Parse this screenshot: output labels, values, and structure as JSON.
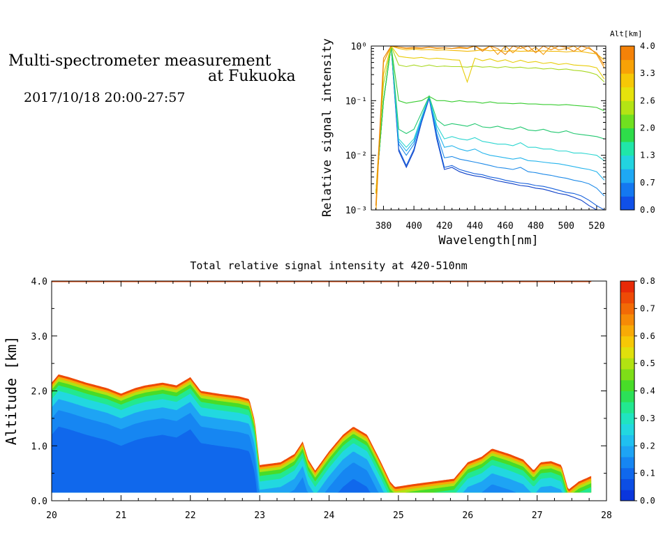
{
  "header": {
    "title_line1": "Multi-spectrometer measurement",
    "title_line2": "at Fukuoka",
    "datetime": "2017/10/18 20:00-27:57"
  },
  "chart_data": [
    {
      "type": "line",
      "xlabel": "Wavelength[nm]",
      "ylabel": "Relative signal intensity",
      "x": [
        375,
        380,
        385,
        390,
        395,
        400,
        405,
        410,
        415,
        420,
        425,
        430,
        435,
        440,
        445,
        450,
        455,
        460,
        465,
        470,
        475,
        480,
        485,
        490,
        495,
        500,
        505,
        510,
        515,
        520,
        525
      ],
      "xlim": [
        372,
        526
      ],
      "xticks": [
        "380",
        "400",
        "420",
        "440",
        "460",
        "480",
        "500",
        "520"
      ],
      "ylim": [
        0.001,
        1
      ],
      "yscale": "log",
      "yticks": [
        "10⁻³",
        "10⁻²",
        "10⁻¹",
        "10⁰"
      ],
      "colorbar": {
        "label": "Alt[km]",
        "ticks": [
          "0.0",
          "0.7",
          "1.3",
          "2.0",
          "2.6",
          "3.3",
          "4.0"
        ],
        "colors": [
          "#1050e8",
          "#1478f0",
          "#1ea8f4",
          "#22d4e0",
          "#20e6a8",
          "#2edc4a",
          "#70e020",
          "#b4e414",
          "#e6e20c",
          "#f6c806",
          "#f8a206",
          "#f48208"
        ]
      },
      "series": [
        {
          "color": "#0a3ec8",
          "values": [
            0.002,
            0.1,
            1,
            0.012,
            0.006,
            0.012,
            0.04,
            0.11,
            0.02,
            0.0055,
            0.006,
            0.005,
            0.0045,
            0.0042,
            0.004,
            0.0037,
            0.0034,
            0.0032,
            0.003,
            0.0028,
            0.0027,
            0.0025,
            0.0024,
            0.0022,
            0.002,
            0.0019,
            0.0017,
            0.0015,
            0.0012,
            0.001,
            0.0009
          ]
        },
        {
          "color": "#1660dc",
          "values": [
            0.002,
            0.1,
            1,
            0.013,
            0.0065,
            0.013,
            0.042,
            0.115,
            0.022,
            0.006,
            0.0065,
            0.0055,
            0.005,
            0.0046,
            0.0044,
            0.004,
            0.0038,
            0.0035,
            0.0033,
            0.0031,
            0.003,
            0.0028,
            0.0027,
            0.0025,
            0.0023,
            0.0021,
            0.002,
            0.0018,
            0.0015,
            0.0012,
            0.001
          ]
        },
        {
          "color": "#1e8ae8",
          "values": [
            0.002,
            0.1,
            1,
            0.016,
            0.01,
            0.016,
            0.045,
            0.12,
            0.025,
            0.009,
            0.0095,
            0.0085,
            0.008,
            0.0075,
            0.007,
            0.0065,
            0.006,
            0.0058,
            0.0055,
            0.006,
            0.005,
            0.0048,
            0.0045,
            0.0043,
            0.004,
            0.0038,
            0.0035,
            0.0033,
            0.003,
            0.0025,
            0.0018
          ]
        },
        {
          "color": "#24b4ec",
          "values": [
            0.002,
            0.1,
            1,
            0.018,
            0.012,
            0.018,
            0.05,
            0.12,
            0.03,
            0.014,
            0.015,
            0.013,
            0.012,
            0.013,
            0.011,
            0.01,
            0.0095,
            0.009,
            0.0085,
            0.009,
            0.008,
            0.0078,
            0.0075,
            0.0072,
            0.007,
            0.0066,
            0.0062,
            0.0058,
            0.0055,
            0.005,
            0.0035
          ]
        },
        {
          "color": "#2cd6d0",
          "values": [
            0.002,
            0.1,
            1,
            0.02,
            0.014,
            0.02,
            0.05,
            0.12,
            0.035,
            0.02,
            0.022,
            0.02,
            0.019,
            0.021,
            0.018,
            0.017,
            0.016,
            0.016,
            0.015,
            0.017,
            0.014,
            0.014,
            0.013,
            0.013,
            0.012,
            0.012,
            0.011,
            0.011,
            0.0105,
            0.01,
            0.008
          ]
        },
        {
          "color": "#22c870",
          "values": [
            0.002,
            0.1,
            1,
            0.03,
            0.025,
            0.03,
            0.06,
            0.12,
            0.045,
            0.035,
            0.038,
            0.036,
            0.034,
            0.038,
            0.033,
            0.032,
            0.034,
            0.031,
            0.03,
            0.033,
            0.029,
            0.028,
            0.03,
            0.027,
            0.026,
            0.028,
            0.025,
            0.024,
            0.023,
            0.022,
            0.02
          ]
        },
        {
          "color": "#38cc30",
          "values": [
            0.002,
            0.1,
            1,
            0.1,
            0.09,
            0.095,
            0.1,
            0.12,
            0.1,
            0.1,
            0.095,
            0.1,
            0.095,
            0.095,
            0.09,
            0.095,
            0.09,
            0.09,
            0.088,
            0.09,
            0.087,
            0.087,
            0.085,
            0.085,
            0.083,
            0.085,
            0.082,
            0.08,
            0.078,
            0.075,
            0.065
          ]
        },
        {
          "color": "#a8d820",
          "values": [
            0.002,
            0.2,
            1,
            0.45,
            0.42,
            0.45,
            0.42,
            0.45,
            0.42,
            0.43,
            0.42,
            0.42,
            0.41,
            0.43,
            0.41,
            0.42,
            0.4,
            0.42,
            0.4,
            0.41,
            0.39,
            0.4,
            0.38,
            0.39,
            0.37,
            0.38,
            0.36,
            0.35,
            0.33,
            0.3,
            0.22
          ]
        },
        {
          "color": "#e8cc08",
          "values": [
            0.002,
            0.3,
            1,
            0.65,
            0.62,
            0.6,
            0.62,
            0.58,
            0.6,
            0.58,
            0.56,
            0.55,
            0.22,
            0.6,
            0.54,
            0.58,
            0.52,
            0.56,
            0.5,
            0.55,
            0.5,
            0.52,
            0.48,
            0.5,
            0.46,
            0.48,
            0.45,
            0.44,
            0.43,
            0.4,
            0.25
          ]
        },
        {
          "color": "#f2b804",
          "values": [
            0.0008,
            0.5,
            1,
            0.9,
            0.85,
            0.88,
            0.85,
            0.86,
            0.84,
            0.85,
            0.83,
            0.82,
            0.8,
            0.82,
            0.85,
            0.82,
            0.84,
            0.8,
            0.82,
            0.8,
            0.81,
            0.8,
            0.82,
            0.8,
            0.8,
            0.78,
            0.8,
            0.79,
            0.75,
            0.72,
            0.55
          ]
        },
        {
          "color": "#f49a06",
          "values": [
            0.0009,
            0.5,
            1,
            0.95,
            0.9,
            0.92,
            0.9,
            0.95,
            0.9,
            0.92,
            0.9,
            0.92,
            0.9,
            1,
            0.85,
            1,
            0.7,
            1,
            0.75,
            1,
            0.8,
            0.95,
            0.7,
            1,
            0.85,
            0.9,
            1,
            0.8,
            0.95,
            0.7,
            0.4
          ]
        },
        {
          "color": "#e8840a",
          "values": [
            0.0012,
            0.6,
            1,
            0.95,
            0.92,
            0.94,
            0.92,
            0.95,
            0.92,
            0.93,
            0.9,
            0.95,
            0.92,
            1,
            0.8,
            1,
            0.9,
            0.7,
            1,
            0.9,
            1,
            0.75,
            1,
            0.85,
            1,
            0.95,
            0.8,
            1,
            0.9,
            0.75,
            0.45
          ]
        }
      ]
    },
    {
      "type": "heatmap",
      "title": "Total relative signal intensity at 420-510nm",
      "ylabel": "Altitude [km]",
      "xlim": [
        20,
        28
      ],
      "ylim": [
        0,
        4
      ],
      "xticks": [
        "20",
        "21",
        "22",
        "23",
        "24",
        "25",
        "26",
        "27",
        "28"
      ],
      "yticks": [
        "0.0",
        "1.0",
        "2.0",
        "3.0",
        "4.0"
      ],
      "data_x_end": 27.78,
      "colorbar": {
        "ticks": [
          "0.0",
          "0.1",
          "0.2",
          "0.3",
          "0.4",
          "0.5",
          "0.6",
          "0.7",
          "0.8"
        ],
        "colors": [
          "#0a36dc",
          "#0c4ee4",
          "#1068ec",
          "#1686f2",
          "#1ea4f4",
          "#20c0f0",
          "#22d8e0",
          "#20e4c0",
          "#22e890",
          "#2ce058",
          "#48dc28",
          "#7ede18",
          "#b2e212",
          "#e0e00c",
          "#f6c806",
          "#f8aa06",
          "#f68a06",
          "#f26a06",
          "#ee4a06",
          "#e82a08"
        ]
      },
      "cloud_top_km": {
        "t": [
          20,
          20.1,
          20.25,
          20.5,
          20.8,
          21.0,
          21.2,
          21.35,
          21.6,
          21.8,
          22.0,
          22.15,
          22.4,
          22.7,
          22.85,
          22.93,
          23.0,
          23.3,
          23.5,
          23.62,
          23.7,
          23.8,
          24.0,
          24.2,
          24.35,
          24.55,
          24.75,
          24.88,
          24.95,
          25.2,
          25.5,
          25.8,
          26.0,
          26.2,
          26.35,
          26.6,
          26.8,
          26.95,
          27.05,
          27.2,
          27.35,
          27.45,
          27.6,
          27.78
        ],
        "km": [
          2.15,
          2.3,
          2.25,
          2.15,
          2.05,
          1.95,
          2.05,
          2.1,
          2.15,
          2.1,
          2.25,
          2.0,
          1.95,
          1.9,
          1.85,
          1.45,
          0.65,
          0.7,
          0.85,
          1.08,
          0.75,
          0.55,
          0.9,
          1.2,
          1.35,
          1.2,
          0.7,
          0.35,
          0.25,
          0.3,
          0.35,
          0.4,
          0.7,
          0.8,
          0.95,
          0.85,
          0.75,
          0.55,
          0.7,
          0.72,
          0.65,
          0.2,
          0.35,
          0.45
        ]
      },
      "cloud_base_km": 0.15
    }
  ]
}
